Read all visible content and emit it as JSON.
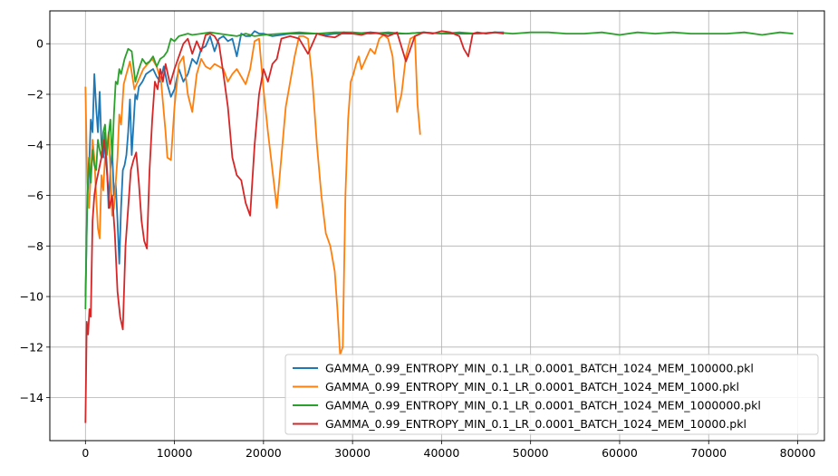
{
  "chart_data": {
    "type": "line",
    "title": "",
    "xlabel": "",
    "ylabel": "",
    "xlim": [
      -4000,
      83000
    ],
    "ylim": [
      -15.7,
      1.3
    ],
    "xticks": [
      0,
      10000,
      20000,
      30000,
      40000,
      50000,
      60000,
      70000,
      80000
    ],
    "xtick_labels": [
      "0",
      "10000",
      "20000",
      "30000",
      "40000",
      "50000",
      "60000",
      "70000",
      "80000"
    ],
    "yticks": [
      0,
      -2,
      -4,
      -6,
      -8,
      -10,
      -12,
      -14
    ],
    "ytick_labels": [
      "0",
      "−2",
      "−4",
      "−6",
      "−8",
      "−10",
      "−12",
      "−14"
    ],
    "grid": true,
    "legend_position": "lower right",
    "series": [
      {
        "name": "GAMMA_0.99_ENTROPY_MIN_0.1_LR_0.0001_BATCH_1024_MEM_100000.pkl",
        "color": "#1f77b4",
        "x": [
          0,
          200,
          400,
          600,
          800,
          1000,
          1200,
          1400,
          1600,
          1800,
          2000,
          2200,
          2400,
          2600,
          2800,
          3000,
          3200,
          3400,
          3600,
          3800,
          4000,
          4200,
          4400,
          4600,
          4800,
          5000,
          5200,
          5400,
          5600,
          5800,
          6000,
          6400,
          6800,
          7200,
          7600,
          8000,
          8400,
          8800,
          9200,
          9600,
          10000,
          10500,
          11000,
          11500,
          12000,
          12500,
          13000,
          13500,
          14000,
          14500,
          15000,
          15500,
          16000,
          16500,
          17000,
          17500,
          18000,
          18500,
          19000,
          19500,
          20000,
          21000,
          22000,
          23000,
          24000,
          25000,
          26000,
          27000,
          28000,
          29000,
          30000,
          32000,
          34000,
          36000,
          38000,
          40000,
          42000,
          44000,
          46000,
          47000
        ],
        "y": [
          -10.0,
          -6.5,
          -5.0,
          -3.0,
          -3.5,
          -1.2,
          -2.5,
          -3.5,
          -1.9,
          -4.0,
          -4.5,
          -3.5,
          -4.8,
          -6.5,
          -5.0,
          -4.2,
          -6.0,
          -5.5,
          -7.0,
          -8.7,
          -6.5,
          -5.0,
          -4.8,
          -4.4,
          -3.5,
          -2.2,
          -4.4,
          -3.2,
          -2.0,
          -2.2,
          -1.7,
          -1.5,
          -1.2,
          -1.1,
          -1.0,
          -1.3,
          -1.5,
          -0.9,
          -1.6,
          -2.1,
          -1.8,
          -1.0,
          -1.5,
          -1.2,
          -0.6,
          -0.8,
          -0.2,
          -0.1,
          0.3,
          -0.3,
          0.2,
          0.3,
          0.1,
          0.2,
          -0.5,
          0.4,
          0.3,
          0.3,
          0.5,
          0.4,
          0.4,
          0.3,
          0.35,
          0.4,
          0.4,
          0.4,
          0.4,
          0.35,
          0.4,
          0.4,
          0.4,
          0.45,
          0.4,
          0.4,
          0.45,
          0.4,
          0.4,
          0.4,
          0.45,
          0.45
        ]
      },
      {
        "name": "GAMMA_0.99_ENTROPY_MIN_0.1_LR_0.0001_BATCH_1024_MEM_1000.pkl",
        "color": "#ff7f0e",
        "x": [
          0,
          200,
          400,
          600,
          800,
          1000,
          1200,
          1400,
          1600,
          1800,
          2000,
          2200,
          2400,
          2600,
          2800,
          3000,
          3200,
          3400,
          3600,
          3800,
          4000,
          4300,
          4600,
          5000,
          5500,
          6000,
          6500,
          7000,
          7500,
          8000,
          8500,
          9000,
          9200,
          9600,
          10000,
          10500,
          11000,
          11500,
          12000,
          12500,
          13000,
          13500,
          14000,
          14500,
          15000,
          15500,
          16000,
          16500,
          17000,
          17500,
          18000,
          18500,
          19000,
          19500,
          20000,
          20500,
          21000,
          21500,
          22000,
          22500,
          23000,
          23500,
          24000,
          24500,
          25000,
          25500,
          26000,
          26500,
          27000,
          27500,
          28000,
          28300,
          28600,
          28900,
          29200,
          29500,
          29800,
          30100,
          30400,
          30700,
          31000,
          31500,
          32000,
          32500,
          33000,
          33500,
          34000,
          34500,
          35000,
          35500,
          36000,
          36500,
          37000,
          37300,
          37600
        ],
        "y": [
          -1.7,
          -5.5,
          -6.5,
          -5.2,
          -3.8,
          -4.5,
          -6.0,
          -7.3,
          -7.7,
          -5.2,
          -5.8,
          -4.5,
          -4.2,
          -3.5,
          -5.0,
          -6.8,
          -6.5,
          -5.5,
          -4.5,
          -2.8,
          -3.2,
          -1.6,
          -1.2,
          -0.7,
          -1.8,
          -1.4,
          -1.0,
          -0.8,
          -0.6,
          -0.9,
          -1.5,
          -3.5,
          -4.5,
          -4.6,
          -2.5,
          -0.8,
          -0.5,
          -2.0,
          -2.7,
          -1.2,
          -0.6,
          -0.9,
          -1.0,
          -0.8,
          -0.9,
          -1.0,
          -1.5,
          -1.2,
          -1.0,
          -1.3,
          -1.6,
          -1.0,
          0.1,
          0.2,
          -1.8,
          -3.5,
          -5.0,
          -6.5,
          -4.5,
          -2.5,
          -1.5,
          -0.5,
          0.3,
          0.3,
          0.2,
          -1.5,
          -4.0,
          -6.0,
          -7.5,
          -8.0,
          -9.0,
          -10.5,
          -12.3,
          -12.0,
          -6.0,
          -3.0,
          -1.5,
          -1.2,
          -0.8,
          -0.5,
          -1.0,
          -0.6,
          -0.2,
          -0.4,
          0.2,
          0.35,
          0.2,
          -0.5,
          -2.7,
          -2.0,
          -0.5,
          0.2,
          0.3,
          -2.4,
          -3.6
        ]
      },
      {
        "name": "GAMMA_0.99_ENTROPY_MIN_0.1_LR_0.0001_BATCH_1024_MEM_1000000.pkl",
        "color": "#2ca02c",
        "x": [
          0,
          200,
          400,
          600,
          800,
          1000,
          1200,
          1400,
          1600,
          1800,
          2000,
          2200,
          2400,
          2600,
          2800,
          3000,
          3200,
          3400,
          3600,
          3800,
          4000,
          4400,
          4800,
          5200,
          5600,
          6000,
          6400,
          6800,
          7200,
          7600,
          8000,
          8400,
          8800,
          9200,
          9600,
          10000,
          10500,
          11000,
          11500,
          12000,
          13000,
          14000,
          15000,
          16000,
          17000,
          18000,
          19000,
          20000,
          22000,
          24000,
          26000,
          28000,
          30000,
          32000,
          34000,
          36000,
          38000,
          40000,
          42000,
          44000,
          46000,
          48000,
          50000,
          52000,
          54000,
          56000,
          58000,
          60000,
          62000,
          64000,
          66000,
          68000,
          70000,
          72000,
          74000,
          76000,
          78000,
          79500
        ],
        "y": [
          -10.5,
          -6.0,
          -4.5,
          -5.5,
          -4.2,
          -4.8,
          -5.0,
          -3.8,
          -4.2,
          -4.5,
          -3.5,
          -3.2,
          -4.4,
          -3.6,
          -3.0,
          -4.6,
          -2.8,
          -1.5,
          -1.6,
          -1.0,
          -1.2,
          -0.6,
          -0.2,
          -0.3,
          -1.5,
          -1.0,
          -0.6,
          -0.8,
          -0.7,
          -0.5,
          -0.9,
          -0.6,
          -0.5,
          -0.3,
          0.2,
          0.1,
          0.3,
          0.35,
          0.4,
          0.35,
          0.4,
          0.45,
          0.4,
          0.35,
          0.3,
          0.4,
          0.3,
          0.35,
          0.4,
          0.45,
          0.4,
          0.45,
          0.45,
          0.4,
          0.45,
          0.4,
          0.45,
          0.4,
          0.45,
          0.4,
          0.45,
          0.4,
          0.45,
          0.45,
          0.4,
          0.4,
          0.45,
          0.35,
          0.45,
          0.4,
          0.45,
          0.4,
          0.4,
          0.4,
          0.45,
          0.35,
          0.45,
          0.4
        ]
      },
      {
        "name": "GAMMA_0.99_ENTROPY_MIN_0.1_LR_0.0001_BATCH_1024_MEM_10000.pkl",
        "color": "#d62728",
        "x": [
          0,
          150,
          300,
          450,
          600,
          800,
          1000,
          1200,
          1500,
          1800,
          2100,
          2400,
          2700,
          3000,
          3300,
          3600,
          3900,
          4200,
          4500,
          4800,
          5100,
          5400,
          5700,
          6000,
          6300,
          6600,
          6900,
          7200,
          7500,
          7800,
          8100,
          8400,
          8700,
          9000,
          9500,
          10000,
          10500,
          11000,
          11500,
          12000,
          12500,
          13000,
          13500,
          14000,
          14500,
          15000,
          15500,
          16000,
          16500,
          17000,
          17500,
          18000,
          18500,
          19000,
          19500,
          20000,
          20500,
          21000,
          21500,
          22000,
          23000,
          24000,
          25000,
          26000,
          27000,
          28000,
          29000,
          30000,
          31000,
          32000,
          33000,
          34000,
          35000,
          36000,
          37000,
          38000,
          39000,
          40000,
          41000,
          42000,
          42500,
          43000,
          43500,
          44000,
          45000,
          46000,
          47000
        ],
        "y": [
          -15.0,
          -11.0,
          -11.5,
          -10.5,
          -10.8,
          -7.0,
          -6.0,
          -5.5,
          -5.0,
          -4.5,
          -3.8,
          -5.0,
          -6.5,
          -6.0,
          -7.5,
          -9.8,
          -10.8,
          -11.3,
          -8.0,
          -6.5,
          -5.0,
          -4.6,
          -4.3,
          -5.5,
          -7.0,
          -7.8,
          -8.1,
          -5.0,
          -3.0,
          -1.5,
          -1.8,
          -1.0,
          -1.5,
          -0.8,
          -1.6,
          -1.0,
          -0.5,
          0.0,
          0.2,
          -0.4,
          0.1,
          -0.3,
          0.35,
          0.4,
          0.3,
          0.0,
          -1.2,
          -2.5,
          -4.5,
          -5.2,
          -5.4,
          -6.3,
          -6.8,
          -4.0,
          -2.0,
          -1.0,
          -1.5,
          -0.8,
          -0.6,
          0.2,
          0.3,
          0.2,
          -0.4,
          0.4,
          0.3,
          0.25,
          0.45,
          0.4,
          0.35,
          0.45,
          0.4,
          0.3,
          0.45,
          -0.7,
          0.3,
          0.45,
          0.4,
          0.5,
          0.45,
          0.3,
          -0.2,
          -0.5,
          0.4,
          0.45,
          0.4,
          0.45,
          0.4
        ]
      }
    ]
  }
}
